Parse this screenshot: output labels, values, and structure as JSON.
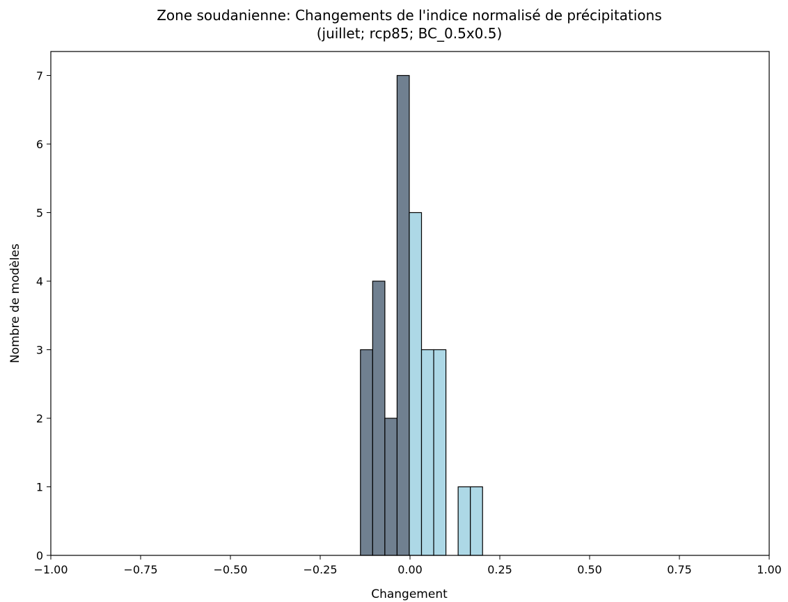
{
  "chart_data": {
    "type": "bar",
    "title": "Zone soudanienne: Changements de l'indice normalisé de précipitations",
    "subtitle": "(juillet; rcp85; BC_0.5x0.5)",
    "xlabel": "Changement",
    "ylabel": "Nombre de modèles",
    "xlim": [
      -1.0,
      1.0
    ],
    "ylim": [
      0,
      7.35
    ],
    "xticks": [
      "−1.00",
      "−0.75",
      "−0.50",
      "−0.25",
      "0.00",
      "0.25",
      "0.50",
      "0.75",
      "1.00"
    ],
    "yticks": [
      "0",
      "1",
      "2",
      "3",
      "4",
      "5",
      "6",
      "7"
    ],
    "grid": false,
    "bins": [
      {
        "x0": -0.206,
        "x1": -0.172,
        "count": 0,
        "group": "negative"
      },
      {
        "x0": -0.172,
        "x1": -0.138,
        "count": 0,
        "group": "negative"
      },
      {
        "x0": -0.138,
        "x1": -0.104,
        "count": 3,
        "group": "negative"
      },
      {
        "x0": -0.104,
        "x1": -0.07,
        "count": 4,
        "group": "negative"
      },
      {
        "x0": -0.07,
        "x1": -0.036,
        "count": 2,
        "group": "negative"
      },
      {
        "x0": -0.036,
        "x1": -0.002,
        "count": 7,
        "group": "negative"
      },
      {
        "x0": -0.002,
        "x1": 0.032,
        "count": 5,
        "group": "positive"
      },
      {
        "x0": 0.032,
        "x1": 0.066,
        "count": 3,
        "group": "positive"
      },
      {
        "x0": 0.066,
        "x1": 0.1,
        "count": 3,
        "group": "positive"
      },
      {
        "x0": 0.1,
        "x1": 0.134,
        "count": 0,
        "group": "positive"
      },
      {
        "x0": 0.134,
        "x1": 0.168,
        "count": 1,
        "group": "positive"
      },
      {
        "x0": 0.168,
        "x1": 0.202,
        "count": 1,
        "group": "positive"
      }
    ],
    "colors": {
      "negative": "#708090",
      "positive": "#add8e6",
      "edge": "#000000"
    }
  }
}
